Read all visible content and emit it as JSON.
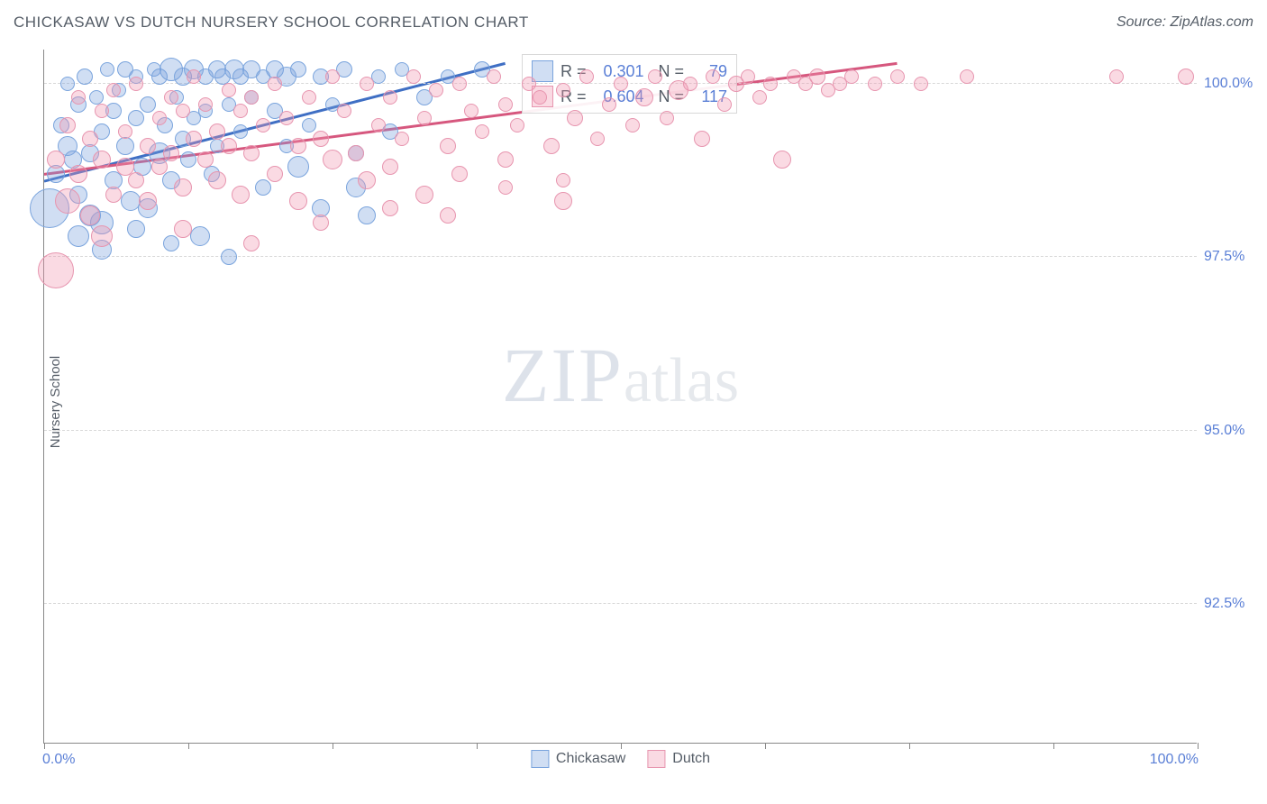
{
  "title": "CHICKASAW VS DUTCH NURSERY SCHOOL CORRELATION CHART",
  "source": "Source: ZipAtlas.com",
  "ylabel": "Nursery School",
  "watermark_zip": "ZIP",
  "watermark_atlas": "atlas",
  "chart": {
    "type": "scatter",
    "xlim": [
      0,
      100
    ],
    "ylim": [
      90.5,
      100.5
    ],
    "xlabel_min": "0.0%",
    "xlabel_max": "100.0%",
    "yticks": [
      {
        "v": 92.5,
        "label": "92.5%"
      },
      {
        "v": 95.0,
        "label": "95.0%"
      },
      {
        "v": 97.5,
        "label": "97.5%"
      },
      {
        "v": 100.0,
        "label": "100.0%"
      }
    ],
    "xtick_positions": [
      0,
      12.5,
      25,
      37.5,
      50,
      62.5,
      75,
      87.5,
      100
    ],
    "background_color": "#ffffff",
    "grid_color": "#d8d8d8",
    "axis_color": "#888888",
    "series": [
      {
        "name": "Chickasaw",
        "fill": "rgba(120,160,220,0.35)",
        "stroke": "#7aa4dd",
        "line_color": "#3f6fc4",
        "R": "0.301",
        "N": "79",
        "trend": {
          "x1": 0,
          "y1": 98.6,
          "x2": 40,
          "y2": 100.3
        },
        "points": [
          {
            "x": 0.5,
            "y": 98.2,
            "r": 22
          },
          {
            "x": 1,
            "y": 98.7,
            "r": 10
          },
          {
            "x": 1.5,
            "y": 99.4,
            "r": 9
          },
          {
            "x": 2,
            "y": 100.0,
            "r": 8
          },
          {
            "x": 2,
            "y": 99.1,
            "r": 11
          },
          {
            "x": 2.5,
            "y": 98.9,
            "r": 10
          },
          {
            "x": 3,
            "y": 99.7,
            "r": 9
          },
          {
            "x": 3,
            "y": 98.4,
            "r": 10
          },
          {
            "x": 3.5,
            "y": 100.1,
            "r": 9
          },
          {
            "x": 4,
            "y": 99.0,
            "r": 10
          },
          {
            "x": 4,
            "y": 98.1,
            "r": 12
          },
          {
            "x": 4.5,
            "y": 99.8,
            "r": 8
          },
          {
            "x": 5,
            "y": 99.3,
            "r": 9
          },
          {
            "x": 5,
            "y": 98.0,
            "r": 13
          },
          {
            "x": 5.5,
            "y": 100.2,
            "r": 8
          },
          {
            "x": 6,
            "y": 99.6,
            "r": 9
          },
          {
            "x": 6,
            "y": 98.6,
            "r": 10
          },
          {
            "x": 6.5,
            "y": 99.9,
            "r": 8
          },
          {
            "x": 7,
            "y": 99.1,
            "r": 10
          },
          {
            "x": 7,
            "y": 100.2,
            "r": 9
          },
          {
            "x": 7.5,
            "y": 98.3,
            "r": 11
          },
          {
            "x": 8,
            "y": 99.5,
            "r": 9
          },
          {
            "x": 8,
            "y": 100.1,
            "r": 8
          },
          {
            "x": 8.5,
            "y": 98.8,
            "r": 10
          },
          {
            "x": 9,
            "y": 99.7,
            "r": 9
          },
          {
            "x": 9,
            "y": 98.2,
            "r": 11
          },
          {
            "x": 9.5,
            "y": 100.2,
            "r": 8
          },
          {
            "x": 10,
            "y": 99.0,
            "r": 12
          },
          {
            "x": 10,
            "y": 100.1,
            "r": 9
          },
          {
            "x": 10.5,
            "y": 99.4,
            "r": 9
          },
          {
            "x": 11,
            "y": 98.6,
            "r": 10
          },
          {
            "x": 11,
            "y": 100.2,
            "r": 13
          },
          {
            "x": 11.5,
            "y": 99.8,
            "r": 8
          },
          {
            "x": 12,
            "y": 99.2,
            "r": 9
          },
          {
            "x": 12,
            "y": 100.1,
            "r": 10
          },
          {
            "x": 12.5,
            "y": 98.9,
            "r": 9
          },
          {
            "x": 13,
            "y": 100.2,
            "r": 11
          },
          {
            "x": 13,
            "y": 99.5,
            "r": 8
          },
          {
            "x": 13.5,
            "y": 97.8,
            "r": 11
          },
          {
            "x": 14,
            "y": 100.1,
            "r": 9
          },
          {
            "x": 14,
            "y": 99.6,
            "r": 8
          },
          {
            "x": 14.5,
            "y": 98.7,
            "r": 9
          },
          {
            "x": 15,
            "y": 100.2,
            "r": 10
          },
          {
            "x": 15,
            "y": 99.1,
            "r": 8
          },
          {
            "x": 15.5,
            "y": 100.1,
            "r": 9
          },
          {
            "x": 16,
            "y": 99.7,
            "r": 8
          },
          {
            "x": 16,
            "y": 97.5,
            "r": 9
          },
          {
            "x": 16.5,
            "y": 100.2,
            "r": 11
          },
          {
            "x": 17,
            "y": 99.3,
            "r": 8
          },
          {
            "x": 17,
            "y": 100.1,
            "r": 9
          },
          {
            "x": 18,
            "y": 99.8,
            "r": 8
          },
          {
            "x": 18,
            "y": 100.2,
            "r": 10
          },
          {
            "x": 19,
            "y": 98.5,
            "r": 9
          },
          {
            "x": 19,
            "y": 100.1,
            "r": 8
          },
          {
            "x": 20,
            "y": 99.6,
            "r": 9
          },
          {
            "x": 20,
            "y": 100.2,
            "r": 10
          },
          {
            "x": 21,
            "y": 99.1,
            "r": 8
          },
          {
            "x": 21,
            "y": 100.1,
            "r": 11
          },
          {
            "x": 22,
            "y": 98.8,
            "r": 12
          },
          {
            "x": 22,
            "y": 100.2,
            "r": 9
          },
          {
            "x": 23,
            "y": 99.4,
            "r": 8
          },
          {
            "x": 24,
            "y": 100.1,
            "r": 9
          },
          {
            "x": 24,
            "y": 98.2,
            "r": 10
          },
          {
            "x": 25,
            "y": 99.7,
            "r": 8
          },
          {
            "x": 26,
            "y": 100.2,
            "r": 9
          },
          {
            "x": 27,
            "y": 98.5,
            "r": 11
          },
          {
            "x": 27,
            "y": 99.0,
            "r": 9
          },
          {
            "x": 28,
            "y": 98.1,
            "r": 10
          },
          {
            "x": 29,
            "y": 100.1,
            "r": 8
          },
          {
            "x": 30,
            "y": 99.3,
            "r": 9
          },
          {
            "x": 31,
            "y": 100.2,
            "r": 8
          },
          {
            "x": 33,
            "y": 99.8,
            "r": 9
          },
          {
            "x": 35,
            "y": 100.1,
            "r": 8
          },
          {
            "x": 38,
            "y": 100.2,
            "r": 9
          },
          {
            "x": 3,
            "y": 97.8,
            "r": 12
          },
          {
            "x": 5,
            "y": 97.6,
            "r": 11
          },
          {
            "x": 8,
            "y": 97.9,
            "r": 10
          },
          {
            "x": 11,
            "y": 97.7,
            "r": 9
          }
        ]
      },
      {
        "name": "Dutch",
        "fill": "rgba(240,150,175,0.35)",
        "stroke": "#e795af",
        "line_color": "#d6577e",
        "R": "0.604",
        "N": "117",
        "trend": {
          "x1": 0,
          "y1": 98.7,
          "x2": 74,
          "y2": 100.3
        },
        "points": [
          {
            "x": 1,
            "y": 97.3,
            "r": 20
          },
          {
            "x": 1,
            "y": 98.9,
            "r": 10
          },
          {
            "x": 2,
            "y": 98.3,
            "r": 14
          },
          {
            "x": 2,
            "y": 99.4,
            "r": 9
          },
          {
            "x": 3,
            "y": 98.7,
            "r": 10
          },
          {
            "x": 3,
            "y": 99.8,
            "r": 8
          },
          {
            "x": 4,
            "y": 98.1,
            "r": 11
          },
          {
            "x": 4,
            "y": 99.2,
            "r": 9
          },
          {
            "x": 5,
            "y": 98.9,
            "r": 10
          },
          {
            "x": 5,
            "y": 99.6,
            "r": 8
          },
          {
            "x": 6,
            "y": 98.4,
            "r": 9
          },
          {
            "x": 6,
            "y": 99.9,
            "r": 8
          },
          {
            "x": 7,
            "y": 98.8,
            "r": 10
          },
          {
            "x": 7,
            "y": 99.3,
            "r": 8
          },
          {
            "x": 8,
            "y": 98.6,
            "r": 9
          },
          {
            "x": 8,
            "y": 100.0,
            "r": 8
          },
          {
            "x": 9,
            "y": 99.1,
            "r": 9
          },
          {
            "x": 9,
            "y": 98.3,
            "r": 10
          },
          {
            "x": 10,
            "y": 99.5,
            "r": 8
          },
          {
            "x": 10,
            "y": 98.8,
            "r": 9
          },
          {
            "x": 11,
            "y": 99.8,
            "r": 8
          },
          {
            "x": 11,
            "y": 99.0,
            "r": 9
          },
          {
            "x": 12,
            "y": 98.5,
            "r": 10
          },
          {
            "x": 12,
            "y": 99.6,
            "r": 8
          },
          {
            "x": 13,
            "y": 99.2,
            "r": 9
          },
          {
            "x": 13,
            "y": 100.1,
            "r": 8
          },
          {
            "x": 14,
            "y": 98.9,
            "r": 9
          },
          {
            "x": 14,
            "y": 99.7,
            "r": 8
          },
          {
            "x": 15,
            "y": 99.3,
            "r": 9
          },
          {
            "x": 15,
            "y": 98.6,
            "r": 10
          },
          {
            "x": 16,
            "y": 99.9,
            "r": 8
          },
          {
            "x": 16,
            "y": 99.1,
            "r": 9
          },
          {
            "x": 17,
            "y": 98.4,
            "r": 10
          },
          {
            "x": 17,
            "y": 99.6,
            "r": 8
          },
          {
            "x": 18,
            "y": 99.8,
            "r": 8
          },
          {
            "x": 18,
            "y": 99.0,
            "r": 9
          },
          {
            "x": 19,
            "y": 99.4,
            "r": 8
          },
          {
            "x": 20,
            "y": 98.7,
            "r": 9
          },
          {
            "x": 20,
            "y": 100.0,
            "r": 8
          },
          {
            "x": 21,
            "y": 99.5,
            "r": 8
          },
          {
            "x": 22,
            "y": 99.1,
            "r": 9
          },
          {
            "x": 22,
            "y": 98.3,
            "r": 10
          },
          {
            "x": 23,
            "y": 99.8,
            "r": 8
          },
          {
            "x": 24,
            "y": 99.2,
            "r": 9
          },
          {
            "x": 25,
            "y": 100.1,
            "r": 8
          },
          {
            "x": 25,
            "y": 98.9,
            "r": 11
          },
          {
            "x": 26,
            "y": 99.6,
            "r": 8
          },
          {
            "x": 27,
            "y": 99.0,
            "r": 9
          },
          {
            "x": 28,
            "y": 98.6,
            "r": 10
          },
          {
            "x": 28,
            "y": 100.0,
            "r": 8
          },
          {
            "x": 29,
            "y": 99.4,
            "r": 8
          },
          {
            "x": 30,
            "y": 99.8,
            "r": 8
          },
          {
            "x": 30,
            "y": 98.8,
            "r": 9
          },
          {
            "x": 31,
            "y": 99.2,
            "r": 8
          },
          {
            "x": 32,
            "y": 100.1,
            "r": 8
          },
          {
            "x": 33,
            "y": 99.5,
            "r": 8
          },
          {
            "x": 33,
            "y": 98.4,
            "r": 10
          },
          {
            "x": 34,
            "y": 99.9,
            "r": 8
          },
          {
            "x": 35,
            "y": 99.1,
            "r": 9
          },
          {
            "x": 36,
            "y": 100.0,
            "r": 8
          },
          {
            "x": 36,
            "y": 98.7,
            "r": 9
          },
          {
            "x": 37,
            "y": 99.6,
            "r": 8
          },
          {
            "x": 38,
            "y": 99.3,
            "r": 8
          },
          {
            "x": 39,
            "y": 100.1,
            "r": 8
          },
          {
            "x": 40,
            "y": 99.7,
            "r": 8
          },
          {
            "x": 40,
            "y": 98.9,
            "r": 9
          },
          {
            "x": 41,
            "y": 99.4,
            "r": 8
          },
          {
            "x": 42,
            "y": 100.0,
            "r": 8
          },
          {
            "x": 43,
            "y": 99.8,
            "r": 8
          },
          {
            "x": 44,
            "y": 99.1,
            "r": 9
          },
          {
            "x": 45,
            "y": 98.3,
            "r": 10
          },
          {
            "x": 45,
            "y": 99.9,
            "r": 8
          },
          {
            "x": 46,
            "y": 99.5,
            "r": 9
          },
          {
            "x": 47,
            "y": 100.1,
            "r": 8
          },
          {
            "x": 48,
            "y": 99.2,
            "r": 8
          },
          {
            "x": 49,
            "y": 99.7,
            "r": 8
          },
          {
            "x": 50,
            "y": 100.0,
            "r": 8
          },
          {
            "x": 51,
            "y": 99.4,
            "r": 8
          },
          {
            "x": 52,
            "y": 99.8,
            "r": 10
          },
          {
            "x": 53,
            "y": 100.1,
            "r": 8
          },
          {
            "x": 54,
            "y": 99.5,
            "r": 8
          },
          {
            "x": 55,
            "y": 99.9,
            "r": 11
          },
          {
            "x": 56,
            "y": 100.0,
            "r": 8
          },
          {
            "x": 57,
            "y": 99.2,
            "r": 9
          },
          {
            "x": 58,
            "y": 100.1,
            "r": 8
          },
          {
            "x": 59,
            "y": 99.7,
            "r": 8
          },
          {
            "x": 60,
            "y": 100.0,
            "r": 9
          },
          {
            "x": 61,
            "y": 100.1,
            "r": 8
          },
          {
            "x": 62,
            "y": 99.8,
            "r": 8
          },
          {
            "x": 63,
            "y": 100.0,
            "r": 8
          },
          {
            "x": 64,
            "y": 98.9,
            "r": 10
          },
          {
            "x": 65,
            "y": 100.1,
            "r": 8
          },
          {
            "x": 66,
            "y": 100.0,
            "r": 8
          },
          {
            "x": 67,
            "y": 100.1,
            "r": 9
          },
          {
            "x": 68,
            "y": 99.9,
            "r": 8
          },
          {
            "x": 69,
            "y": 100.0,
            "r": 8
          },
          {
            "x": 70,
            "y": 100.1,
            "r": 8
          },
          {
            "x": 72,
            "y": 100.0,
            "r": 8
          },
          {
            "x": 74,
            "y": 100.1,
            "r": 8
          },
          {
            "x": 76,
            "y": 100.0,
            "r": 8
          },
          {
            "x": 80,
            "y": 100.1,
            "r": 8
          },
          {
            "x": 93,
            "y": 100.1,
            "r": 8
          },
          {
            "x": 99,
            "y": 100.1,
            "r": 9
          },
          {
            "x": 5,
            "y": 97.8,
            "r": 12
          },
          {
            "x": 12,
            "y": 97.9,
            "r": 10
          },
          {
            "x": 18,
            "y": 97.7,
            "r": 9
          },
          {
            "x": 24,
            "y": 98.0,
            "r": 9
          },
          {
            "x": 30,
            "y": 98.2,
            "r": 9
          },
          {
            "x": 35,
            "y": 98.1,
            "r": 9
          },
          {
            "x": 40,
            "y": 98.5,
            "r": 8
          },
          {
            "x": 45,
            "y": 98.6,
            "r": 8
          }
        ]
      }
    ],
    "legend_series": [
      {
        "name": "Chickasaw",
        "fill": "rgba(120,160,220,0.35)",
        "stroke": "#7aa4dd"
      },
      {
        "name": "Dutch",
        "fill": "rgba(240,150,175,0.35)",
        "stroke": "#e795af"
      }
    ]
  }
}
